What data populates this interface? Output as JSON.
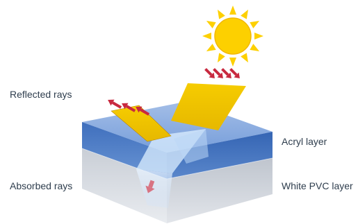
{
  "labels": {
    "reflected_rays": "Reflected rays",
    "absorbed_rays": "Absorbed rays",
    "acryl_layer": "Acryl layer",
    "white_pvc_layer": "White PVC layer"
  },
  "colors": {
    "sun": "#FDD000",
    "sun_ray_triangles": "#FDD000",
    "incoming_ray_band": "#F4C500",
    "ray_arrows": "#C8293F",
    "acryl_layer": "#4F7FC9",
    "pvc_layer": "#D8DCE2",
    "background": "#FFFFFF",
    "label_text": "#2E3D4D"
  },
  "icons": {
    "sun": "sun-icon",
    "arrows": "arrow-icon"
  }
}
